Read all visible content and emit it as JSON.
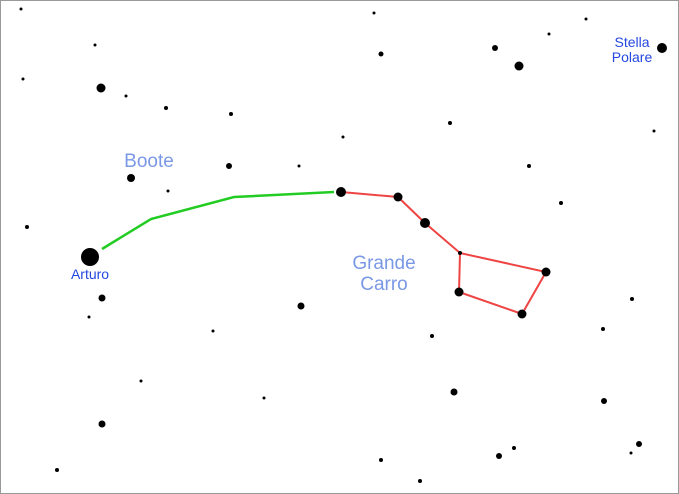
{
  "labels": {
    "stella_polare": "Stella Polare",
    "boote": "Boote",
    "arturo": "Arturo",
    "grande_carro": "Grande Carro"
  }
}
